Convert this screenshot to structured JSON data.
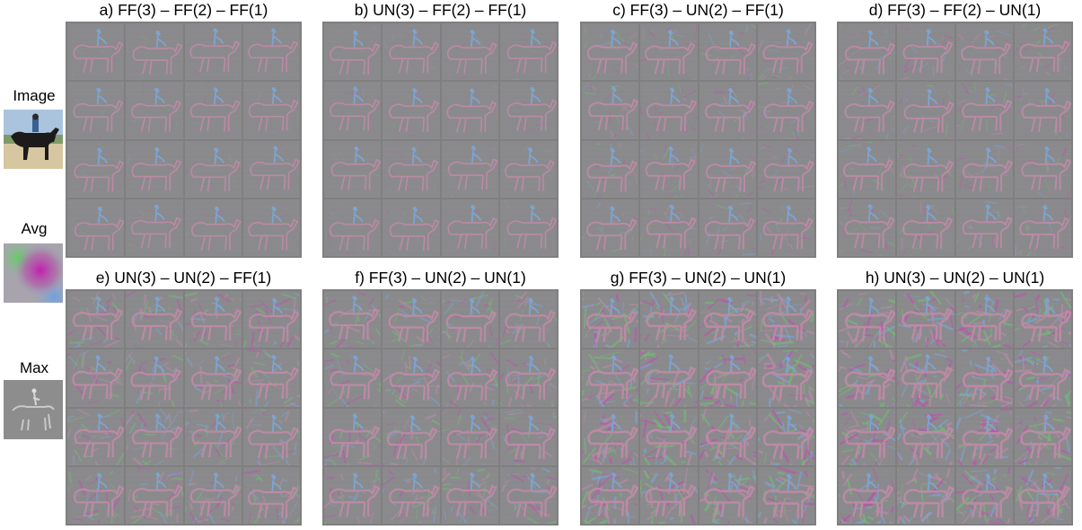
{
  "side": {
    "image_label": "Image",
    "avg_label": "Avg",
    "max_label": "Max"
  },
  "panels": [
    {
      "title": "a) FF(3) – FF(2) – FF(1)"
    },
    {
      "title": "b) UN(3) – FF(2) – FF(1)"
    },
    {
      "title": "c) FF(3) – UN(2) – FF(1)"
    },
    {
      "title": "d) FF(3) – FF(2) – UN(1)"
    },
    {
      "title": "e) UN(3) – UN(2) – FF(1)"
    },
    {
      "title": "f) FF(3) – UN(2) – UN(1)"
    },
    {
      "title": "g) FF(3) – UN(2) – UN(1)"
    },
    {
      "title": "h) UN(3) – UN(2) – UN(1)"
    }
  ],
  "colors": {
    "tile_gray": "#8a8a8c",
    "grid_line": "#7f7f7f",
    "rider_blue": "#7aa6d8",
    "horse_pink": "#c48aa8",
    "noise_magenta": "#c050b0",
    "noise_green": "#70c070"
  }
}
